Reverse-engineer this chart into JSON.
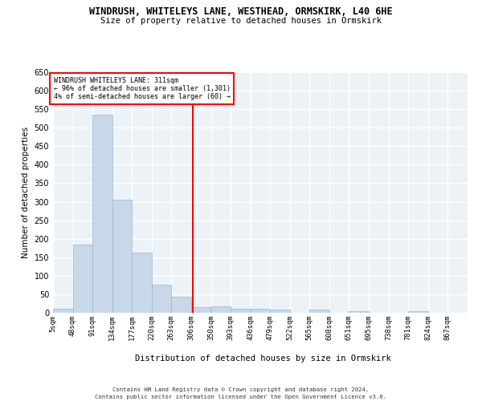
{
  "title": "WINDRUSH, WHITELEYS LANE, WESTHEAD, ORMSKIRK, L40 6HE",
  "subtitle": "Size of property relative to detached houses in Ormskirk",
  "xlabel": "Distribution of detached houses by size in Ormskirk",
  "ylabel": "Number of detached properties",
  "bar_color": "#c8d8e8",
  "bar_edge_color": "#9ab8d0",
  "bins": [
    5,
    48,
    91,
    134,
    177,
    220,
    263,
    306,
    350,
    393,
    436,
    479,
    522,
    565,
    608,
    651,
    695,
    738,
    781,
    824,
    867
  ],
  "bin_labels": [
    "5sqm",
    "48sqm",
    "91sqm",
    "134sqm",
    "177sqm",
    "220sqm",
    "263sqm",
    "306sqm",
    "350sqm",
    "393sqm",
    "436sqm",
    "479sqm",
    "522sqm",
    "565sqm",
    "608sqm",
    "651sqm",
    "695sqm",
    "738sqm",
    "781sqm",
    "824sqm",
    "867sqm"
  ],
  "values": [
    10,
    185,
    535,
    305,
    163,
    75,
    43,
    15,
    18,
    11,
    10,
    8,
    0,
    8,
    0,
    5,
    0,
    0,
    5,
    0,
    0
  ],
  "property_line_x": 311,
  "property_label": "WINDRUSH WHITELEYS LANE: 311sqm",
  "annotation_line1": "← 96% of detached houses are smaller (1,301)",
  "annotation_line2": "4% of semi-detached houses are larger (60) →",
  "ylim": [
    0,
    650
  ],
  "yticks": [
    0,
    50,
    100,
    150,
    200,
    250,
    300,
    350,
    400,
    450,
    500,
    550,
    600,
    650
  ],
  "background_color": "#edf2f7",
  "grid_color": "#ffffff",
  "footer_line1": "Contains HM Land Registry data © Crown copyright and database right 2024.",
  "footer_line2": "Contains public sector information licensed under the Open Government Licence v3.0."
}
